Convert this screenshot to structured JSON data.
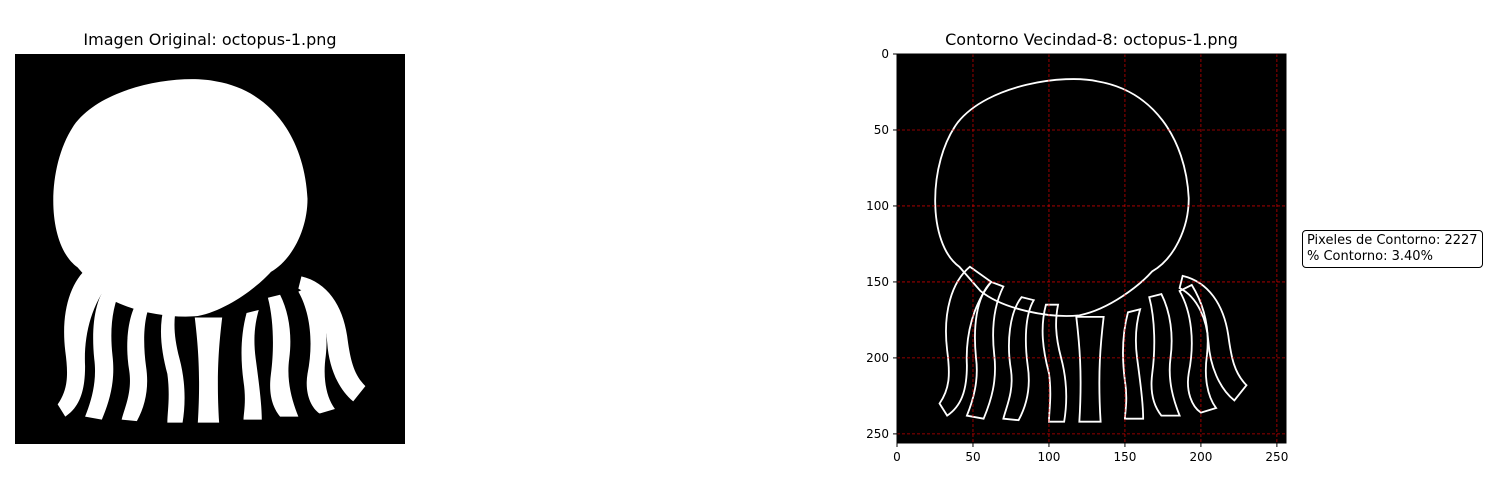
{
  "panels": {
    "left": {
      "title": "Imagen Original: octopus-1.png"
    },
    "right": {
      "title": "Contorno Vecindad-8: octopus-1.png"
    }
  },
  "stats": {
    "line1": "Pixeles de Contorno: 2227",
    "line2": "% Contorno: 3.40%"
  },
  "colors": {
    "background": "#000000",
    "foreground": "#ffffff",
    "grid": "#ff0000"
  },
  "chart_data": [
    {
      "type": "image",
      "title": "Imagen Original: octopus-1.png",
      "axes_visible": false,
      "image_size": [
        256,
        256
      ],
      "content": "binary-octopus-silhouette"
    },
    {
      "type": "image",
      "title": "Contorno Vecindad-8: octopus-1.png",
      "axes_visible": true,
      "xlim": [
        0,
        256
      ],
      "ylim": [
        256,
        0
      ],
      "xticks": [
        0,
        50,
        100,
        150,
        200,
        250
      ],
      "yticks": [
        0,
        50,
        100,
        150,
        200,
        250
      ],
      "grid": true,
      "grid_style": "dashed-red",
      "contour_pixels": 2227,
      "contour_percent": 3.4
    }
  ]
}
